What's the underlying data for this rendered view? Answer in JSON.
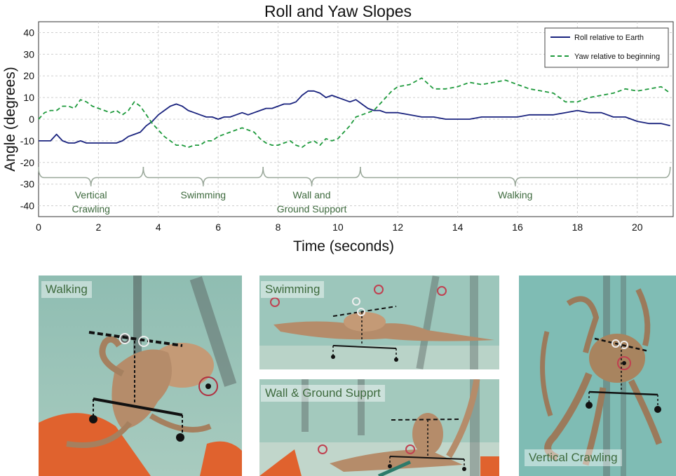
{
  "chart_data": {
    "type": "line",
    "title": "Roll and Yaw Slopes",
    "xlabel": "Time (seconds)",
    "ylabel": "Angle (degrees)",
    "xlim": [
      0,
      21.2
    ],
    "ylim": [
      -45,
      45
    ],
    "xticks": [
      0,
      2,
      4,
      6,
      8,
      10,
      12,
      14,
      16,
      18,
      20
    ],
    "yticks": [
      -40,
      -30,
      -20,
      -10,
      0,
      10,
      20,
      30,
      40
    ],
    "grid": true,
    "legend_position": "top-right",
    "series": [
      {
        "name": "Roll relative to Earth",
        "color": "#1a237e",
        "style": "solid",
        "x": [
          0,
          0.2,
          0.4,
          0.6,
          0.8,
          1.0,
          1.2,
          1.4,
          1.6,
          1.8,
          2.0,
          2.2,
          2.4,
          2.6,
          2.8,
          3.0,
          3.2,
          3.4,
          3.6,
          3.8,
          4.0,
          4.2,
          4.4,
          4.6,
          4.8,
          5.0,
          5.2,
          5.4,
          5.6,
          5.8,
          6.0,
          6.2,
          6.4,
          6.6,
          6.8,
          7.0,
          7.2,
          7.4,
          7.6,
          7.8,
          8.0,
          8.2,
          8.4,
          8.6,
          8.8,
          9.0,
          9.2,
          9.4,
          9.6,
          9.8,
          10.0,
          10.2,
          10.4,
          10.6,
          10.8,
          11.0,
          11.2,
          11.4,
          11.6,
          11.8,
          12.0,
          12.4,
          12.8,
          13.2,
          13.6,
          14.0,
          14.4,
          14.8,
          15.2,
          15.6,
          16.0,
          16.4,
          16.8,
          17.2,
          17.6,
          18.0,
          18.4,
          18.8,
          19.2,
          19.6,
          20.0,
          20.4,
          20.8,
          21.1
        ],
        "y": [
          -10,
          -10,
          -10,
          -7,
          -10,
          -11,
          -11,
          -10,
          -11,
          -11,
          -11,
          -11,
          -11,
          -11,
          -10,
          -8,
          -7,
          -6,
          -3,
          -1,
          2,
          4,
          6,
          7,
          6,
          4,
          3,
          2,
          1,
          1,
          0,
          1,
          1,
          2,
          3,
          2,
          3,
          4,
          5,
          5,
          6,
          7,
          7,
          8,
          11,
          13,
          13,
          12,
          10,
          11,
          10,
          9,
          8,
          9,
          7,
          5,
          4,
          4,
          3,
          3,
          3,
          2,
          1,
          1,
          0,
          0,
          0,
          1,
          1,
          1,
          1,
          2,
          2,
          2,
          3,
          4,
          3,
          3,
          1,
          1,
          -1,
          -2,
          -2,
          -3
        ]
      },
      {
        "name": "Yaw relative to beginning",
        "color": "#1e9a3c",
        "style": "dashed",
        "x": [
          0,
          0.2,
          0.4,
          0.6,
          0.8,
          1.0,
          1.2,
          1.4,
          1.6,
          1.8,
          2.0,
          2.2,
          2.4,
          2.6,
          2.8,
          3.0,
          3.2,
          3.4,
          3.6,
          3.8,
          4.0,
          4.2,
          4.4,
          4.6,
          4.8,
          5.0,
          5.2,
          5.4,
          5.6,
          5.8,
          6.0,
          6.2,
          6.4,
          6.6,
          6.8,
          7.0,
          7.2,
          7.4,
          7.6,
          7.8,
          8.0,
          8.2,
          8.4,
          8.6,
          8.8,
          9.0,
          9.2,
          9.4,
          9.6,
          9.8,
          10.0,
          10.2,
          10.4,
          10.6,
          10.8,
          11.0,
          11.2,
          11.4,
          11.6,
          11.8,
          12.0,
          12.4,
          12.8,
          13.2,
          13.6,
          14.0,
          14.4,
          14.8,
          15.2,
          15.6,
          16.0,
          16.4,
          16.8,
          17.2,
          17.6,
          18.0,
          18.4,
          18.8,
          19.2,
          19.6,
          20.0,
          20.4,
          20.8,
          21.1
        ],
        "y": [
          0,
          3,
          4,
          4,
          6,
          6,
          5,
          9,
          8,
          6,
          5,
          4,
          3,
          4,
          2,
          4,
          8,
          6,
          2,
          -2,
          -5,
          -8,
          -10,
          -12,
          -12,
          -13,
          -12,
          -12,
          -10,
          -10,
          -8,
          -7,
          -6,
          -5,
          -4,
          -5,
          -6,
          -9,
          -11,
          -12,
          -12,
          -11,
          -10,
          -12,
          -13,
          -11,
          -10,
          -12,
          -9,
          -10,
          -9,
          -6,
          -3,
          1,
          2,
          3,
          4,
          7,
          10,
          13,
          15,
          16,
          19,
          14,
          14,
          15,
          17,
          16,
          17,
          18,
          16,
          14,
          13,
          12,
          8,
          8,
          10,
          11,
          12,
          14,
          13,
          14,
          15,
          12
        ]
      }
    ],
    "phases": [
      {
        "label_lines": [
          "Vertical",
          "Crawling"
        ],
        "start": 0,
        "end": 3.5
      },
      {
        "label_lines": [
          "Swimming"
        ],
        "start": 3.5,
        "end": 7.5
      },
      {
        "label_lines": [
          "Wall and",
          "Ground Support"
        ],
        "start": 7.5,
        "end": 10.75
      },
      {
        "label_lines": [
          "Walking"
        ],
        "start": 10.75,
        "end": 21.1
      }
    ],
    "phase_color": "#3e6a3e"
  },
  "photos": {
    "walking": {
      "label": "Walking"
    },
    "swimming": {
      "label": "Swimming"
    },
    "wall_ground": {
      "label": "Wall & Ground Supprt"
    },
    "vertical": {
      "label": "Vertical  Crawling"
    }
  }
}
